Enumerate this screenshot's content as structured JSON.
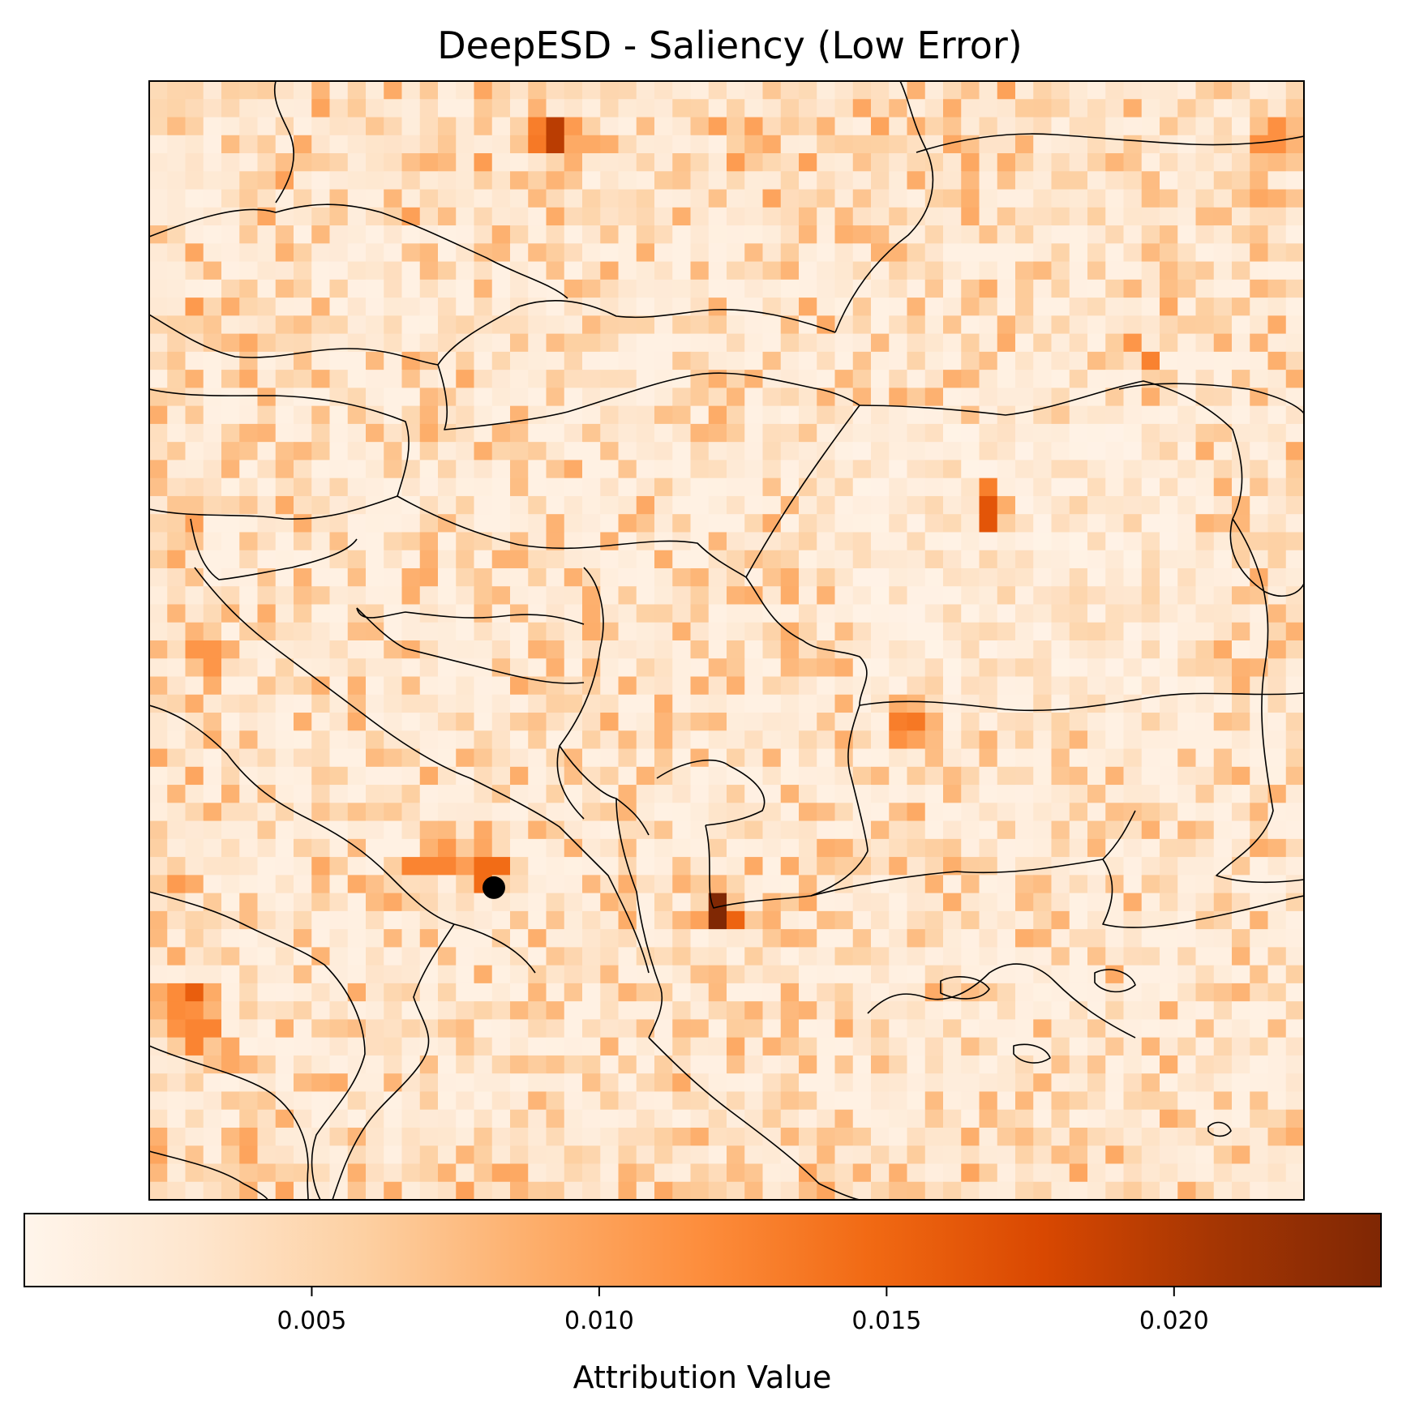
{
  "chart_data": {
    "type": "heatmap",
    "title": "DeepESD - Saliency (Low Error)",
    "colormap": "Oranges",
    "colormap_stops": [
      "#fff5eb",
      "#fee6ce",
      "#fdd0a2",
      "#fdae6b",
      "#fd8d3c",
      "#f16913",
      "#d94801",
      "#a63603",
      "#7f2704"
    ],
    "grid": {
      "columns": 64,
      "rows": 62
    },
    "marker": {
      "column": 19.1,
      "row": 44.7,
      "color": "#000000",
      "description": "target point"
    },
    "hotspots": [
      {
        "column": 22.8,
        "row": 3.1,
        "value": 0.0195
      },
      {
        "column": 31.5,
        "row": 45.9,
        "value": 0.0235
      },
      {
        "column": 46.6,
        "row": 23.9,
        "value": 0.0165
      },
      {
        "column": 42.6,
        "row": 35.4,
        "value": 0.0135
      },
      {
        "column": 18.9,
        "row": 43.9,
        "value": 0.0145
      },
      {
        "column": 15.9,
        "row": 43.4,
        "value": 0.0125
      },
      {
        "column": 2.9,
        "row": 52.9,
        "value": 0.0125
      },
      {
        "column": 1.4,
        "row": 51.2,
        "value": 0.012
      },
      {
        "column": 3.1,
        "row": 31.9,
        "value": 0.011
      },
      {
        "column": 54.5,
        "row": 14.4,
        "value": 0.011
      },
      {
        "column": 62.1,
        "row": 3.1,
        "value": 0.0115
      }
    ],
    "colorbar": {
      "label": "Attribution Value",
      "min": 0.0,
      "max": 0.0236,
      "ticks": [
        0.005,
        0.01,
        0.015,
        0.02
      ],
      "tick_labels": [
        "0.005",
        "0.010",
        "0.015",
        "0.020"
      ]
    }
  }
}
